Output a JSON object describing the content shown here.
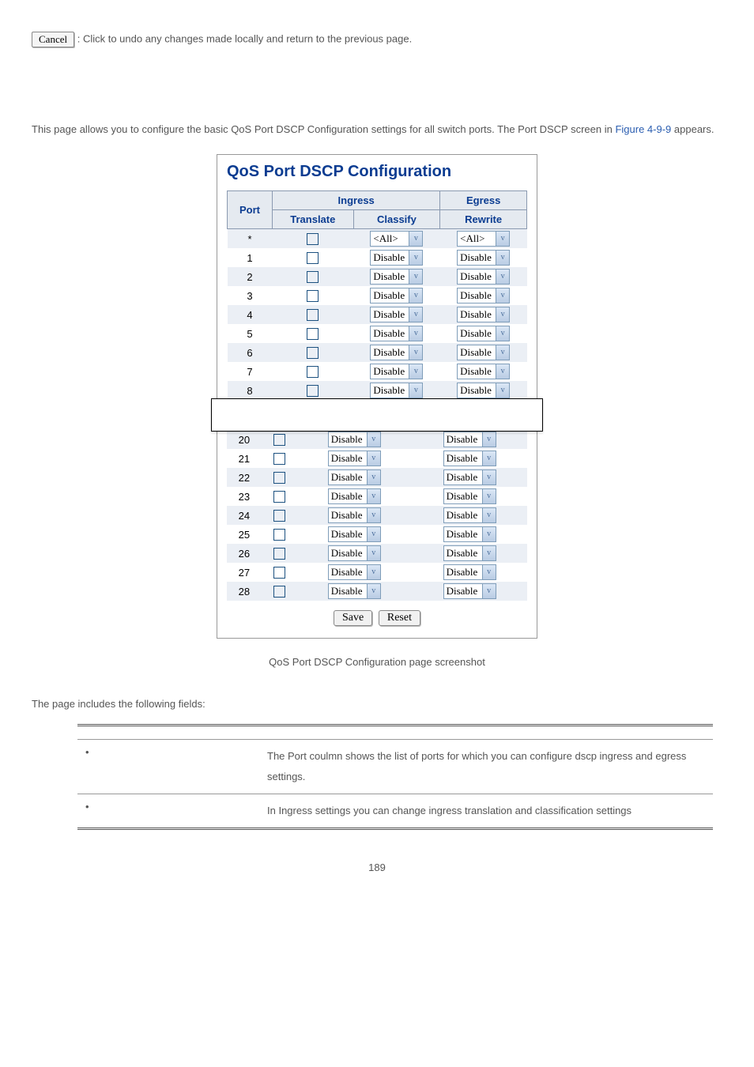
{
  "cancel": {
    "label": "Cancel",
    "description": ": Click to undo any changes made locally and return to the previous page."
  },
  "intro": {
    "text_before_link": "This page allows you to configure the basic QoS Port DSCP Configuration settings for all switch ports. The Port DSCP screen in ",
    "link_text": "Figure 4-9-9",
    "text_after_link": " appears."
  },
  "panel": {
    "title": "QoS Port DSCP Configuration",
    "headers": {
      "port": "Port",
      "ingress": "Ingress",
      "egress": "Egress",
      "translate": "Translate",
      "classify": "Classify",
      "rewrite": "Rewrite"
    },
    "rows_top": [
      {
        "port": "*",
        "classify": "<All>",
        "rewrite": "<All>",
        "alt": true
      },
      {
        "port": "1",
        "classify": "Disable",
        "rewrite": "Disable",
        "alt": false
      },
      {
        "port": "2",
        "classify": "Disable",
        "rewrite": "Disable",
        "alt": true
      },
      {
        "port": "3",
        "classify": "Disable",
        "rewrite": "Disable",
        "alt": false
      },
      {
        "port": "4",
        "classify": "Disable",
        "rewrite": "Disable",
        "alt": true
      },
      {
        "port": "5",
        "classify": "Disable",
        "rewrite": "Disable",
        "alt": false
      },
      {
        "port": "6",
        "classify": "Disable",
        "rewrite": "Disable",
        "alt": true
      },
      {
        "port": "7",
        "classify": "Disable",
        "rewrite": "Disable",
        "alt": false
      },
      {
        "port": "8",
        "classify": "Disable",
        "rewrite": "Disable",
        "alt": true
      }
    ],
    "rows_bottom": [
      {
        "port": "20",
        "classify": "Disable",
        "rewrite": "Disable",
        "alt": true
      },
      {
        "port": "21",
        "classify": "Disable",
        "rewrite": "Disable",
        "alt": false
      },
      {
        "port": "22",
        "classify": "Disable",
        "rewrite": "Disable",
        "alt": true
      },
      {
        "port": "23",
        "classify": "Disable",
        "rewrite": "Disable",
        "alt": false
      },
      {
        "port": "24",
        "classify": "Disable",
        "rewrite": "Disable",
        "alt": true
      },
      {
        "port": "25",
        "classify": "Disable",
        "rewrite": "Disable",
        "alt": false
      },
      {
        "port": "26",
        "classify": "Disable",
        "rewrite": "Disable",
        "alt": true
      },
      {
        "port": "27",
        "classify": "Disable",
        "rewrite": "Disable",
        "alt": false
      },
      {
        "port": "28",
        "classify": "Disable",
        "rewrite": "Disable",
        "alt": true
      }
    ],
    "buttons": {
      "save": "Save",
      "reset": "Reset"
    }
  },
  "caption": "QoS Port DSCP Configuration page screenshot",
  "fields_intro": "The page includes the following fields:",
  "fields_table": {
    "rows": [
      {
        "desc": "The Port coulmn shows the list of ports for which you can configure dscp ingress and egress settings."
      },
      {
        "desc": "In Ingress settings you can change ingress translation and classification settings"
      }
    ]
  },
  "page_number": "189"
}
